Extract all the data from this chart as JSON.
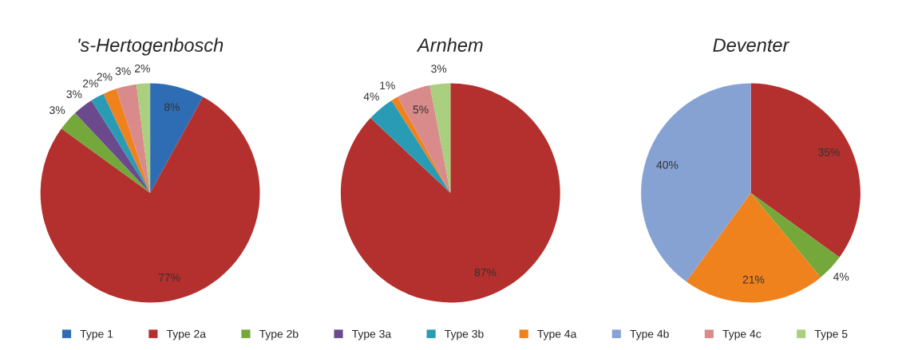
{
  "chart_data": [
    {
      "type": "pie",
      "title": "'s-Hertogenbosch",
      "categories": [
        "Type 1",
        "Type 2a",
        "Type 2b",
        "Type 3a",
        "Type 3b",
        "Type 4a",
        "Type 4b",
        "Type 4c",
        "Type 5"
      ],
      "values": [
        8,
        77,
        3,
        3,
        2,
        2,
        0,
        3,
        2
      ],
      "value_labels": [
        "8%",
        "77%",
        "3%",
        "3%",
        "2%",
        "2%",
        null,
        "3%",
        "2%"
      ],
      "colors": [
        "#2e6db4",
        "#b3302e",
        "#74a83a",
        "#6a4a8c",
        "#2a9bb5",
        "#f0821e",
        "#86a2d3",
        "#d98b8b",
        "#a9cf7f"
      ],
      "legend": "bottom"
    },
    {
      "type": "pie",
      "title": "Arnhem",
      "categories": [
        null,
        null,
        null,
        null,
        null,
        null,
        null,
        null,
        null
      ],
      "values": [
        0,
        87,
        0,
        0,
        4,
        1,
        0,
        5,
        3
      ],
      "value_labels": [
        null,
        "87%",
        null,
        null,
        "4%",
        "1%",
        null,
        "5%",
        "3%"
      ],
      "colors": [
        "#2e6db4",
        "#b3302e",
        "#74a83a",
        "#6a4a8c",
        "#2a9bb5",
        "#f0821e",
        "#86a2d3",
        "#d98b8b",
        "#a9cf7f"
      ]
    },
    {
      "type": "pie",
      "title": "Deventer",
      "categories": [
        null,
        null,
        null,
        null,
        null,
        null,
        null,
        null,
        null
      ],
      "values": [
        0,
        35,
        4,
        0,
        0,
        21,
        40,
        0,
        0
      ],
      "value_labels": [
        null,
        "35%",
        "4%",
        null,
        null,
        "21%",
        "40%",
        null,
        null
      ],
      "colors": [
        "#2e6db4",
        "#b3302e",
        "#74a83a",
        "#6a4a8c",
        "#2a9bb5",
        "#f0821e",
        "#86a2d3",
        "#d98b8b",
        "#a9cf7f"
      ]
    }
  ]
}
